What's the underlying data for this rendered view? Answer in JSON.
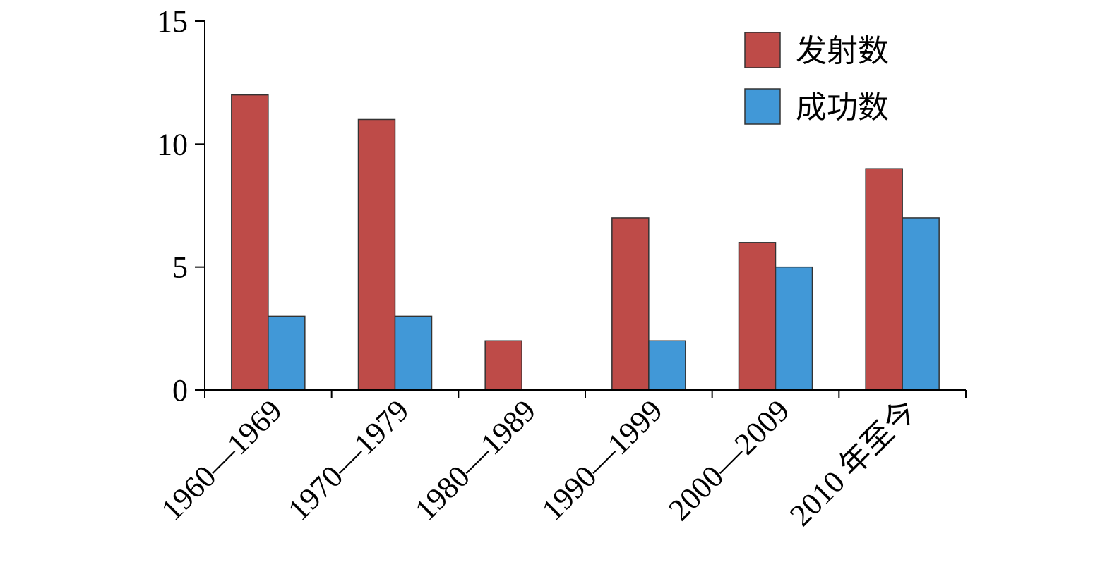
{
  "chart_data": {
    "type": "bar",
    "categories": [
      "1960—1969",
      "1970—1979",
      "1980—1989",
      "1990—1999",
      "2000—2009",
      "2010 年至今"
    ],
    "series": [
      {
        "name": "发射数",
        "values": [
          12,
          11,
          2,
          7,
          6,
          9
        ],
        "color": "#be4b48"
      },
      {
        "name": "成功数",
        "values": [
          3,
          3,
          0,
          2,
          5,
          7
        ],
        "color": "#4198d7"
      }
    ],
    "ylim": [
      0,
      15
    ],
    "yticks": [
      0,
      5,
      10,
      15
    ],
    "grid": false,
    "legend_position": "top-right",
    "title": "",
    "xlabel": "",
    "ylabel": ""
  }
}
